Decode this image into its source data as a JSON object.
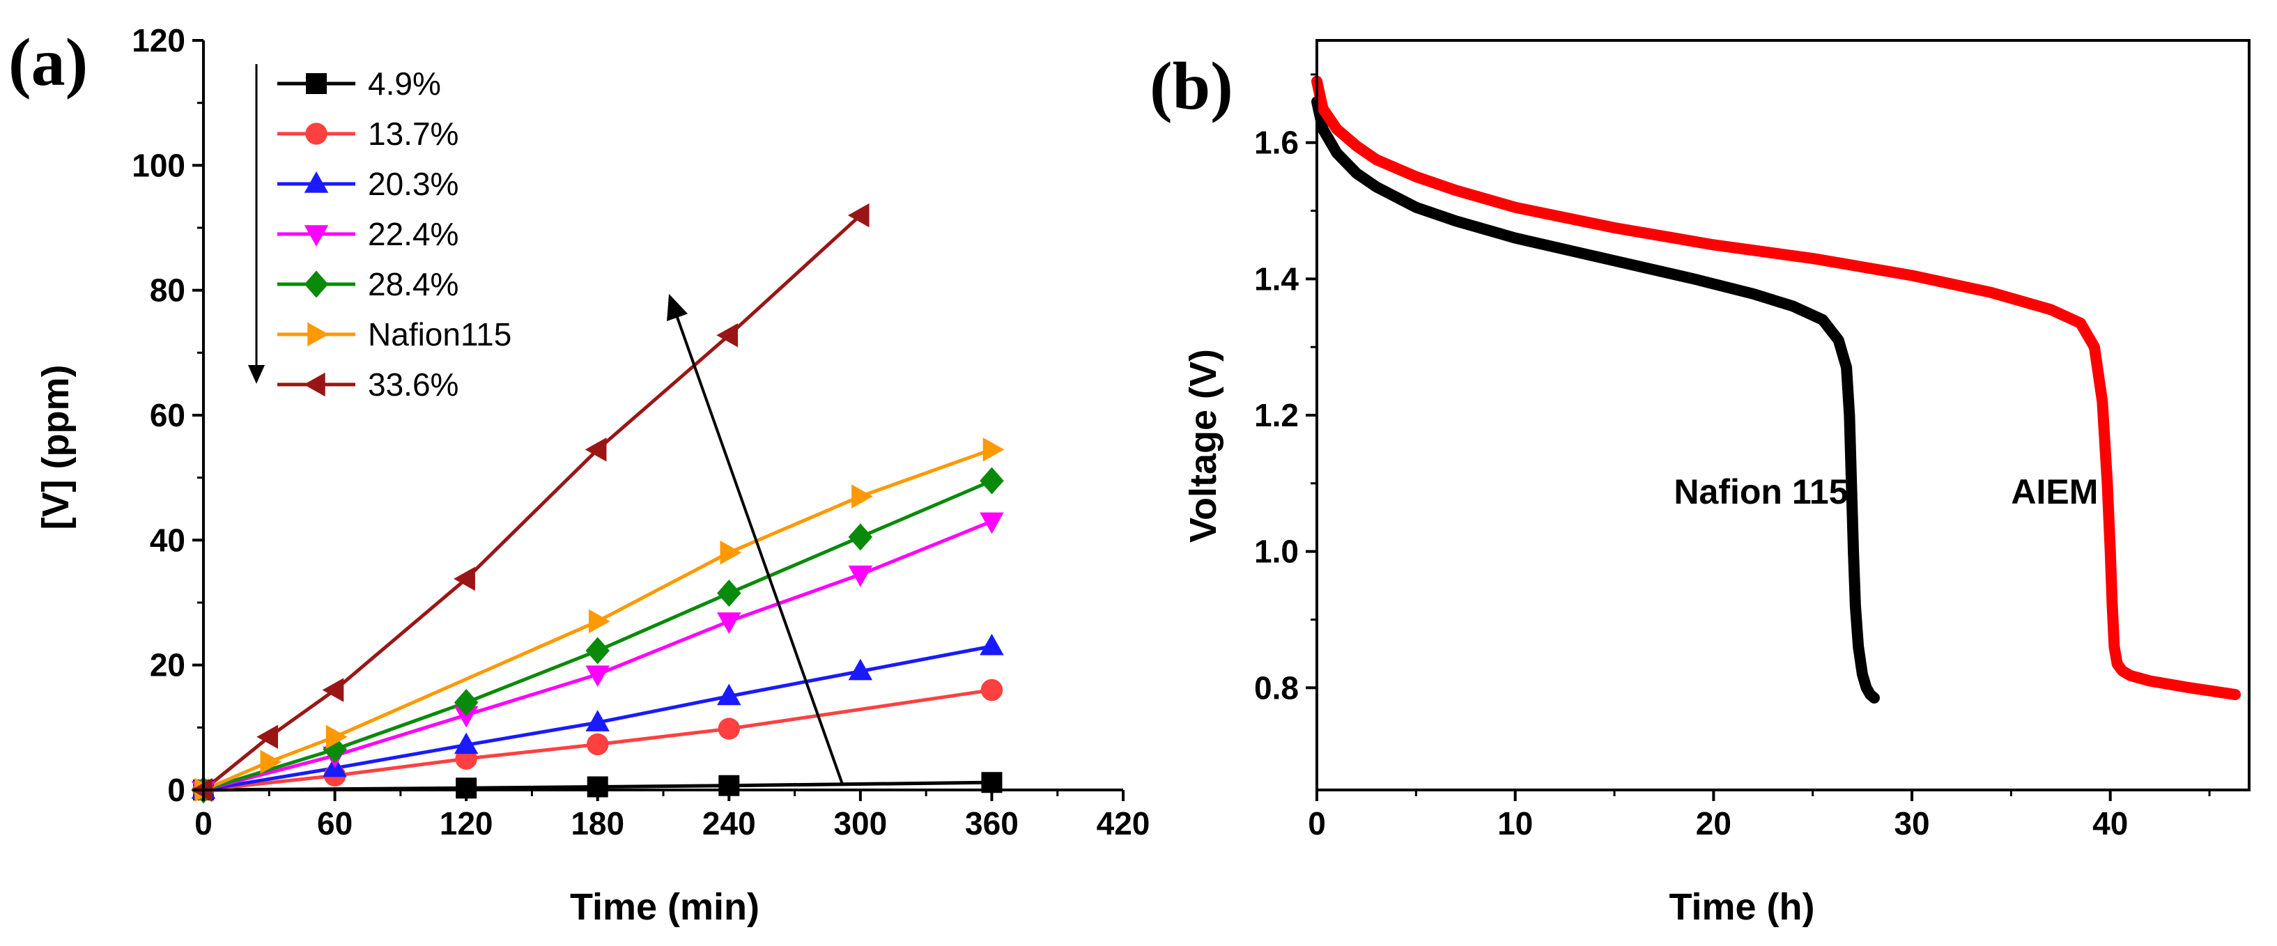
{
  "colors": {
    "background": "#ffffff",
    "axis": "#000000",
    "arrow": "#000000"
  },
  "chart_data": [
    {
      "panel_label": "(a)",
      "type": "line",
      "title": "",
      "xlabel": "Time (min)",
      "ylabel": "[V] (ppm)",
      "xlim": [
        0,
        420
      ],
      "ylim": [
        0,
        120
      ],
      "xticks": [
        0,
        60,
        120,
        180,
        240,
        300,
        360,
        420
      ],
      "yticks": [
        0,
        20,
        40,
        60,
        80,
        100,
        120
      ],
      "xtick_labels": [
        "0",
        "60",
        "120",
        "180",
        "240",
        "300",
        "360",
        "420"
      ],
      "ytick_labels": [
        "0",
        "20",
        "40",
        "60",
        "80",
        "100",
        "120"
      ],
      "legend_position": "top-left",
      "series": [
        {
          "name": "4.9%",
          "color": "#000000",
          "marker": "square",
          "x": [
            0,
            120,
            180,
            240,
            360
          ],
          "y": [
            0,
            0.3,
            0.5,
            0.7,
            1.2
          ]
        },
        {
          "name": "13.7%",
          "color": "#ff4040",
          "marker": "circle",
          "x": [
            0,
            60,
            120,
            180,
            240,
            360
          ],
          "y": [
            0,
            2.3,
            5,
            7.3,
            9.8,
            16
          ]
        },
        {
          "name": "20.3%",
          "color": "#1a1aff",
          "marker": "triangle-up",
          "x": [
            0,
            60,
            120,
            180,
            240,
            300,
            360
          ],
          "y": [
            0,
            3.5,
            7.2,
            10.8,
            15,
            19,
            23
          ]
        },
        {
          "name": "22.4%",
          "color": "#ff00ff",
          "marker": "triangle-down",
          "x": [
            0,
            60,
            120,
            180,
            240,
            300,
            360
          ],
          "y": [
            0,
            5.5,
            12,
            18.5,
            27,
            34.5,
            43
          ]
        },
        {
          "name": "28.4%",
          "color": "#0a8a0a",
          "marker": "diamond",
          "x": [
            0,
            60,
            120,
            180,
            240,
            300,
            360
          ],
          "y": [
            0,
            6.5,
            14,
            22.3,
            31.5,
            40.5,
            49.5
          ]
        },
        {
          "name": "Nafion115",
          "color": "#ff9900",
          "marker": "triangle-right",
          "x": [
            0,
            30,
            60,
            180,
            240,
            300,
            360
          ],
          "y": [
            0,
            4.5,
            8.5,
            27,
            38,
            47,
            54.5
          ]
        },
        {
          "name": "33.6%",
          "color": "#9a1616",
          "marker": "triangle-left",
          "x": [
            0,
            30,
            60,
            120,
            180,
            240,
            300
          ],
          "y": [
            0,
            8.5,
            16,
            33.8,
            54.5,
            72.8,
            92
          ]
        }
      ],
      "annotations": [
        {
          "type": "arrow",
          "from": [
            292,
            0.7
          ],
          "to": [
            213,
            79
          ]
        }
      ]
    },
    {
      "panel_label": "(b)",
      "type": "line",
      "title": "",
      "xlabel": "Time (h)",
      "ylabel": "Voltage (V)",
      "xlim": [
        0,
        47
      ],
      "ylim": [
        0.65,
        1.75
      ],
      "xticks": [
        0,
        10,
        20,
        30,
        40
      ],
      "yticks": [
        0.8,
        1.0,
        1.2,
        1.4,
        1.6
      ],
      "xtick_labels": [
        "0",
        "10",
        "20",
        "30",
        "40"
      ],
      "ytick_labels": [
        "0.8",
        "1.0",
        "1.2",
        "1.4",
        "1.6"
      ],
      "series": [
        {
          "name": "Nafion 115",
          "color": "#000000",
          "x": [
            0,
            0.3,
            1,
            2,
            3,
            5,
            7,
            10,
            13,
            16,
            19,
            22,
            24,
            25.5,
            26.3,
            26.7,
            26.85,
            26.95,
            27.05,
            27.15,
            27.3,
            27.5,
            27.7,
            27.9,
            28.1
          ],
          "y": [
            1.66,
            1.62,
            1.585,
            1.555,
            1.535,
            1.505,
            1.485,
            1.46,
            1.44,
            1.42,
            1.4,
            1.378,
            1.36,
            1.34,
            1.31,
            1.27,
            1.2,
            1.1,
            1.0,
            0.92,
            0.86,
            0.82,
            0.8,
            0.79,
            0.785
          ]
        },
        {
          "name": "AIEM",
          "color": "#ff0000",
          "x": [
            0,
            0.3,
            1,
            2,
            3,
            5,
            7,
            10,
            15,
            20,
            25,
            30,
            34,
            37,
            38.5,
            39.2,
            39.6,
            39.85,
            40.0,
            40.1,
            40.2,
            40.35,
            40.6,
            41,
            42,
            44,
            46.3
          ],
          "y": [
            1.69,
            1.65,
            1.62,
            1.595,
            1.575,
            1.55,
            1.53,
            1.505,
            1.475,
            1.45,
            1.43,
            1.405,
            1.38,
            1.355,
            1.335,
            1.3,
            1.22,
            1.1,
            1.0,
            0.92,
            0.86,
            0.835,
            0.825,
            0.818,
            0.81,
            0.8,
            0.79
          ]
        }
      ],
      "annotations": [
        {
          "type": "label",
          "text": "Nafion 115",
          "x": 18,
          "y": 1.07
        },
        {
          "type": "label",
          "text": "AIEM",
          "x": 35,
          "y": 1.07
        }
      ]
    }
  ]
}
